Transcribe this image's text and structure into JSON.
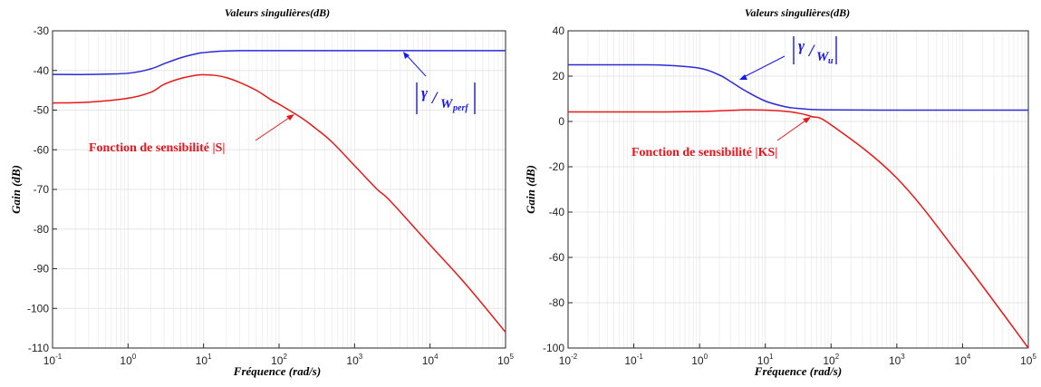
{
  "colors": {
    "series1": "#2a2ad6",
    "series2": "#e81818",
    "grid": "#e6e6e6"
  },
  "chart_data": [
    {
      "type": "line",
      "title": "Valeurs singulières(dB)",
      "xlabel": "Fréquence (rad/s)",
      "ylabel": "Gain (dB)",
      "xscale": "log",
      "xlim": [
        0.1,
        100000
      ],
      "ylim": [
        -110,
        -30
      ],
      "grid": true,
      "x_ticks": [
        "10^-1",
        "10^0",
        "10^1",
        "10^2",
        "10^3",
        "10^4",
        "10^5"
      ],
      "y_ticks": [
        "-30",
        "-40",
        "-50",
        "-60",
        "-70",
        "-80",
        "-90",
        "-100",
        "-110"
      ],
      "x": [
        0.1,
        0.3,
        1,
        2,
        3,
        5,
        8,
        10,
        15,
        20,
        30,
        50,
        80,
        100,
        200,
        300,
        500,
        1000,
        2000,
        3000,
        10000,
        30000,
        100000
      ],
      "series": [
        {
          "values": [
            -41,
            -41,
            -40.7,
            -39.6,
            -38.3,
            -36.8,
            -35.8,
            -35.5,
            -35.2,
            -35.1,
            -35.0,
            -35,
            -35,
            -35,
            -35,
            -35,
            -35,
            -35,
            -35,
            -35,
            -35,
            -35,
            -35
          ]
        },
        {
          "values": [
            -48.2,
            -48.0,
            -47,
            -45.5,
            -43.5,
            -42,
            -41.2,
            -41.1,
            -41.3,
            -41.8,
            -43,
            -45,
            -47.5,
            -48.5,
            -52,
            -54.5,
            -58,
            -64,
            -70,
            -73,
            -84,
            -94,
            -106
          ]
        }
      ],
      "annotations": [
        {
          "text": "Fonction de sensibilité |S|",
          "color": "red"
        },
        {
          "text_main": "γ",
          "text_sub": "W",
          "text_subsub": "perf",
          "color": "blue"
        }
      ]
    },
    {
      "type": "line",
      "title": "Valeurs singulières(dB)",
      "xlabel": "Fréquence (rad/s)",
      "ylabel": "Gain (dB)",
      "xscale": "log",
      "xlim": [
        0.01,
        100000
      ],
      "ylim": [
        -100,
        40
      ],
      "grid": true,
      "x_ticks": [
        "10^-2",
        "10^-1",
        "10^0",
        "10^1",
        "10^2",
        "10^3",
        "10^4",
        "10^5"
      ],
      "y_ticks": [
        "40",
        "20",
        "0",
        "-20",
        "-40",
        "-60",
        "-80",
        "-100"
      ],
      "x": [
        0.01,
        0.1,
        0.3,
        1,
        2,
        3,
        5,
        10,
        20,
        30,
        50,
        100,
        1000,
        10000,
        100000
      ],
      "series": [
        {
          "values": [
            25,
            25,
            24.8,
            23.5,
            20.5,
            17.5,
            13.5,
            9,
            6.5,
            5.8,
            5.3,
            5.1,
            5,
            5,
            5
          ]
        },
        {
          "values": [
            4.2,
            4.2,
            4.2,
            4.4,
            4.7,
            4.9,
            5.1,
            5.0,
            4.5,
            3.8,
            2.2,
            -1.5,
            -25,
            -61,
            -100
          ]
        }
      ],
      "annotations": [
        {
          "text": "Fonction de sensibilité |KS|",
          "color": "red"
        },
        {
          "text_main": "γ",
          "text_sub": "W",
          "text_subsub": "u",
          "color": "blue"
        }
      ]
    }
  ]
}
